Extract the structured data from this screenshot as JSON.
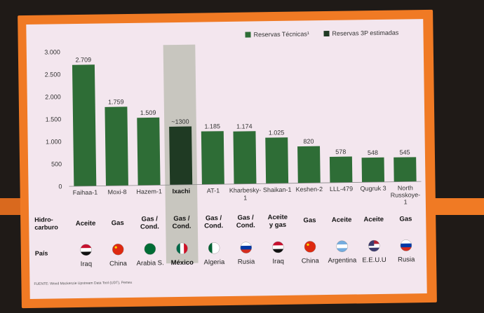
{
  "chart_data": {
    "type": "bar",
    "categories": [
      "Faihaa-1",
      "Moxi-8",
      "Hazem-1",
      "Ixachi",
      "AT-1",
      "Kharbesky-1",
      "Shaikan-1",
      "Keshen-2",
      "LLL-479",
      "Qugruk 3",
      "North Russkoye-1"
    ],
    "series": [
      {
        "name": "Reservas Técnicas¹",
        "values": [
          2709,
          1759,
          1509,
          null,
          1185,
          1174,
          1025,
          820,
          578,
          548,
          545
        ],
        "color": "#2e6d36"
      },
      {
        "name": "Reservas 3P estimadas",
        "values": [
          null,
          null,
          null,
          1300,
          null,
          null,
          null,
          null,
          null,
          null,
          null
        ],
        "color": "#1f3a23"
      }
    ],
    "value_labels": [
      "2.709",
      "1.759",
      "1.509",
      "~1300",
      "1.185",
      "1.174",
      "1.025",
      "820",
      "578",
      "548",
      "545"
    ],
    "yticks": [
      0,
      500,
      1000,
      1500,
      2000,
      2500,
      3000
    ],
    "ytick_labels": [
      "0",
      "500",
      "1.000",
      "1.500",
      "2.000",
      "2.500",
      "3.000"
    ],
    "ylim": [
      0,
      3000
    ],
    "highlight_category": "Ixachi",
    "legend_position": "top-right",
    "grid": false
  },
  "table": {
    "row_hydrocarbon_label": [
      "Hidro-",
      "carburo"
    ],
    "row_country_label": "País",
    "hydrocarbon": [
      [
        "Aceite"
      ],
      [
        "Gas"
      ],
      [
        "Gas /",
        "Cond."
      ],
      [
        "Gas /",
        "Cond."
      ],
      [
        "Gas /",
        "Cond."
      ],
      [
        "Gas /",
        "Cond."
      ],
      [
        "Aceite",
        "y gas"
      ],
      [
        "Gas"
      ],
      [
        "Aceite"
      ],
      [
        "Aceite"
      ],
      [
        "Gas"
      ]
    ],
    "country": [
      "Iraq",
      "China",
      "Arabia S.",
      "México",
      "Algeria",
      "Rusia",
      "Iraq",
      "China",
      "Argentina",
      "E.E.U.U",
      "Rusia"
    ],
    "flag_icons": [
      "iraq-flag-icon",
      "china-flag-icon",
      "saudi-arabia-flag-icon",
      "mexico-flag-icon",
      "algeria-flag-icon",
      "russia-flag-icon",
      "iraq-flag-icon",
      "china-flag-icon",
      "argentina-flag-icon",
      "usa-flag-icon",
      "russia-flag-icon"
    ]
  },
  "source": "FUENTE: Wood Mackenzie Upstream Data Tool (UDT), Pemex",
  "colors": {
    "frame": "#f07a24",
    "panel": "#f3e6ee",
    "bar": "#2e6d36",
    "bar_3p": "#1f3a23",
    "highlight": "#c8c6bf"
  }
}
